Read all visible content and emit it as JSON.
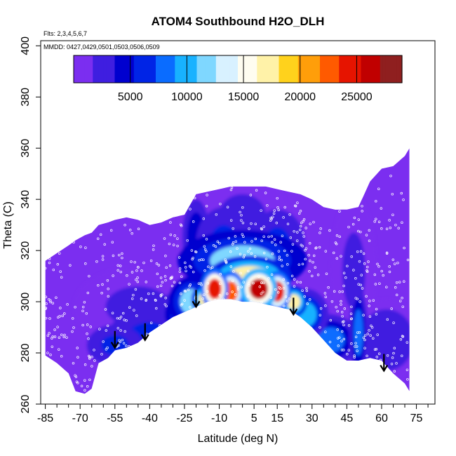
{
  "chart_data": {
    "type": "heatmap",
    "title": "ATOM4 Southbound H2O_DLH",
    "subtitle_flights": "Flts: 2,3,4,5,6,7",
    "subtitle_dates": "MMDD: 0427,0429,0501,0503,0506,0509",
    "xlabel": "Latitude (deg N)",
    "ylabel": "Theta (C)",
    "xlim": [
      -87,
      83
    ],
    "ylim": [
      260,
      402
    ],
    "x_ticks": [
      -85,
      -70,
      -55,
      -40,
      -25,
      -10,
      5,
      15,
      30,
      45,
      60,
      75
    ],
    "x_minor_ticks": [
      -80,
      -75,
      -65,
      -60,
      -50,
      -45,
      -35,
      -30,
      -20,
      -15,
      -5,
      0,
      10,
      20,
      25,
      35,
      40,
      50,
      55,
      65,
      70,
      80
    ],
    "y_ticks": [
      260,
      280,
      300,
      320,
      340,
      360,
      380,
      400
    ],
    "colorbar": {
      "ticks": [
        5000,
        10000,
        15000,
        20000,
        25000
      ],
      "range": [
        0,
        29000
      ],
      "colors": [
        "#7b2ef0",
        "#3f1ee0",
        "#0000cf",
        "#0024e6",
        "#0a6cff",
        "#18b2ff",
        "#7fd7ff",
        "#d8f1ff",
        "#fffdf0",
        "#fff2a8",
        "#ffd21c",
        "#ff9e0a",
        "#ff5a00",
        "#e61400",
        "#c00000",
        "#8f1f1f"
      ]
    },
    "grid": false,
    "outline_lat": [
      -85,
      -80,
      -75,
      -72,
      -68,
      -65,
      -62,
      -58,
      -55,
      -50,
      -45,
      -40,
      -35,
      -30,
      -25,
      -20,
      -15,
      -10,
      -5,
      0,
      5,
      10,
      15,
      20,
      25,
      30,
      35,
      40,
      45,
      50,
      55,
      60,
      65,
      70,
      72
    ],
    "outline_top": [
      316,
      319,
      322,
      324,
      326,
      327,
      330,
      331,
      332,
      333,
      332,
      330,
      331,
      333,
      334,
      342,
      343,
      344,
      345,
      345,
      345,
      345,
      344,
      343,
      342,
      340,
      337,
      336,
      336,
      337,
      347,
      352,
      353,
      357,
      360
    ],
    "outline_bottom": [
      279,
      276,
      272,
      265,
      264,
      266,
      276,
      278,
      281,
      282,
      284,
      288,
      291,
      294,
      296,
      298,
      300,
      301,
      301,
      300,
      300,
      299,
      298,
      297,
      294,
      290,
      285,
      280,
      277,
      277,
      278,
      277,
      272,
      268,
      265
    ],
    "field_points": [
      {
        "lat": -12,
        "theta": 305,
        "value": 25000,
        "s_lat": 3,
        "s_theta": 4
      },
      {
        "lat": -5,
        "theta": 304,
        "value": 22000,
        "s_lat": 3,
        "s_theta": 4
      },
      {
        "lat": 7,
        "theta": 305,
        "value": 27000,
        "s_lat": 4,
        "s_theta": 4
      },
      {
        "lat": 15,
        "theta": 304,
        "value": 24000,
        "s_lat": 3,
        "s_theta": 4
      },
      {
        "lat": 3,
        "theta": 310,
        "value": 18000,
        "s_lat": 9,
        "s_theta": 4
      },
      {
        "lat": -16,
        "theta": 301,
        "value": 17000,
        "s_lat": 3,
        "s_theta": 3
      },
      {
        "lat": 22,
        "theta": 300,
        "value": 17000,
        "s_lat": 3,
        "s_theta": 3
      },
      {
        "lat": 0,
        "theta": 316,
        "value": 11000,
        "s_lat": 14,
        "s_theta": 6
      },
      {
        "lat": -22,
        "theta": 300,
        "value": 12000,
        "s_lat": 5,
        "s_theta": 5
      },
      {
        "lat": 27,
        "theta": 295,
        "value": 10000,
        "s_lat": 5,
        "s_theta": 5
      },
      {
        "lat": -26,
        "theta": 295,
        "value": 7000,
        "s_lat": 5,
        "s_theta": 5
      },
      {
        "lat": -40,
        "theta": 287,
        "value": 6000,
        "s_lat": 9,
        "s_theta": 5
      },
      {
        "lat": -55,
        "theta": 283,
        "value": 6000,
        "s_lat": 6,
        "s_theta": 4
      },
      {
        "lat": 38,
        "theta": 285,
        "value": 8000,
        "s_lat": 6,
        "s_theta": 5
      },
      {
        "lat": 50,
        "theta": 288,
        "value": 9000,
        "s_lat": 2,
        "s_theta": 9
      },
      {
        "lat": -8,
        "theta": 323,
        "value": 6000,
        "s_lat": 6,
        "s_theta": 7
      },
      {
        "lat": 15,
        "theta": 322,
        "value": 6000,
        "s_lat": 6,
        "s_theta": 7
      },
      {
        "lat": -20,
        "theta": 325,
        "value": 4500,
        "s_lat": 4,
        "s_theta": 10
      },
      {
        "lat": 48,
        "theta": 312,
        "value": 3000,
        "s_lat": 5,
        "s_theta": 15
      },
      {
        "lat": -45,
        "theta": 298,
        "value": 3000,
        "s_lat": 14,
        "s_theta": 8
      },
      {
        "lat": 62,
        "theta": 285,
        "value": 3500,
        "s_lat": 8,
        "s_theta": 8
      },
      {
        "lat": 0,
        "theta": 334,
        "value": 3000,
        "s_lat": 10,
        "s_theta": 8
      }
    ],
    "tropopause_arrows": [
      {
        "lat": -55,
        "theta": 282
      },
      {
        "lat": -42,
        "theta": 285
      },
      {
        "lat": -20,
        "theta": 298
      },
      {
        "lat": 22,
        "theta": 295
      },
      {
        "lat": 61,
        "theta": 273
      }
    ]
  }
}
